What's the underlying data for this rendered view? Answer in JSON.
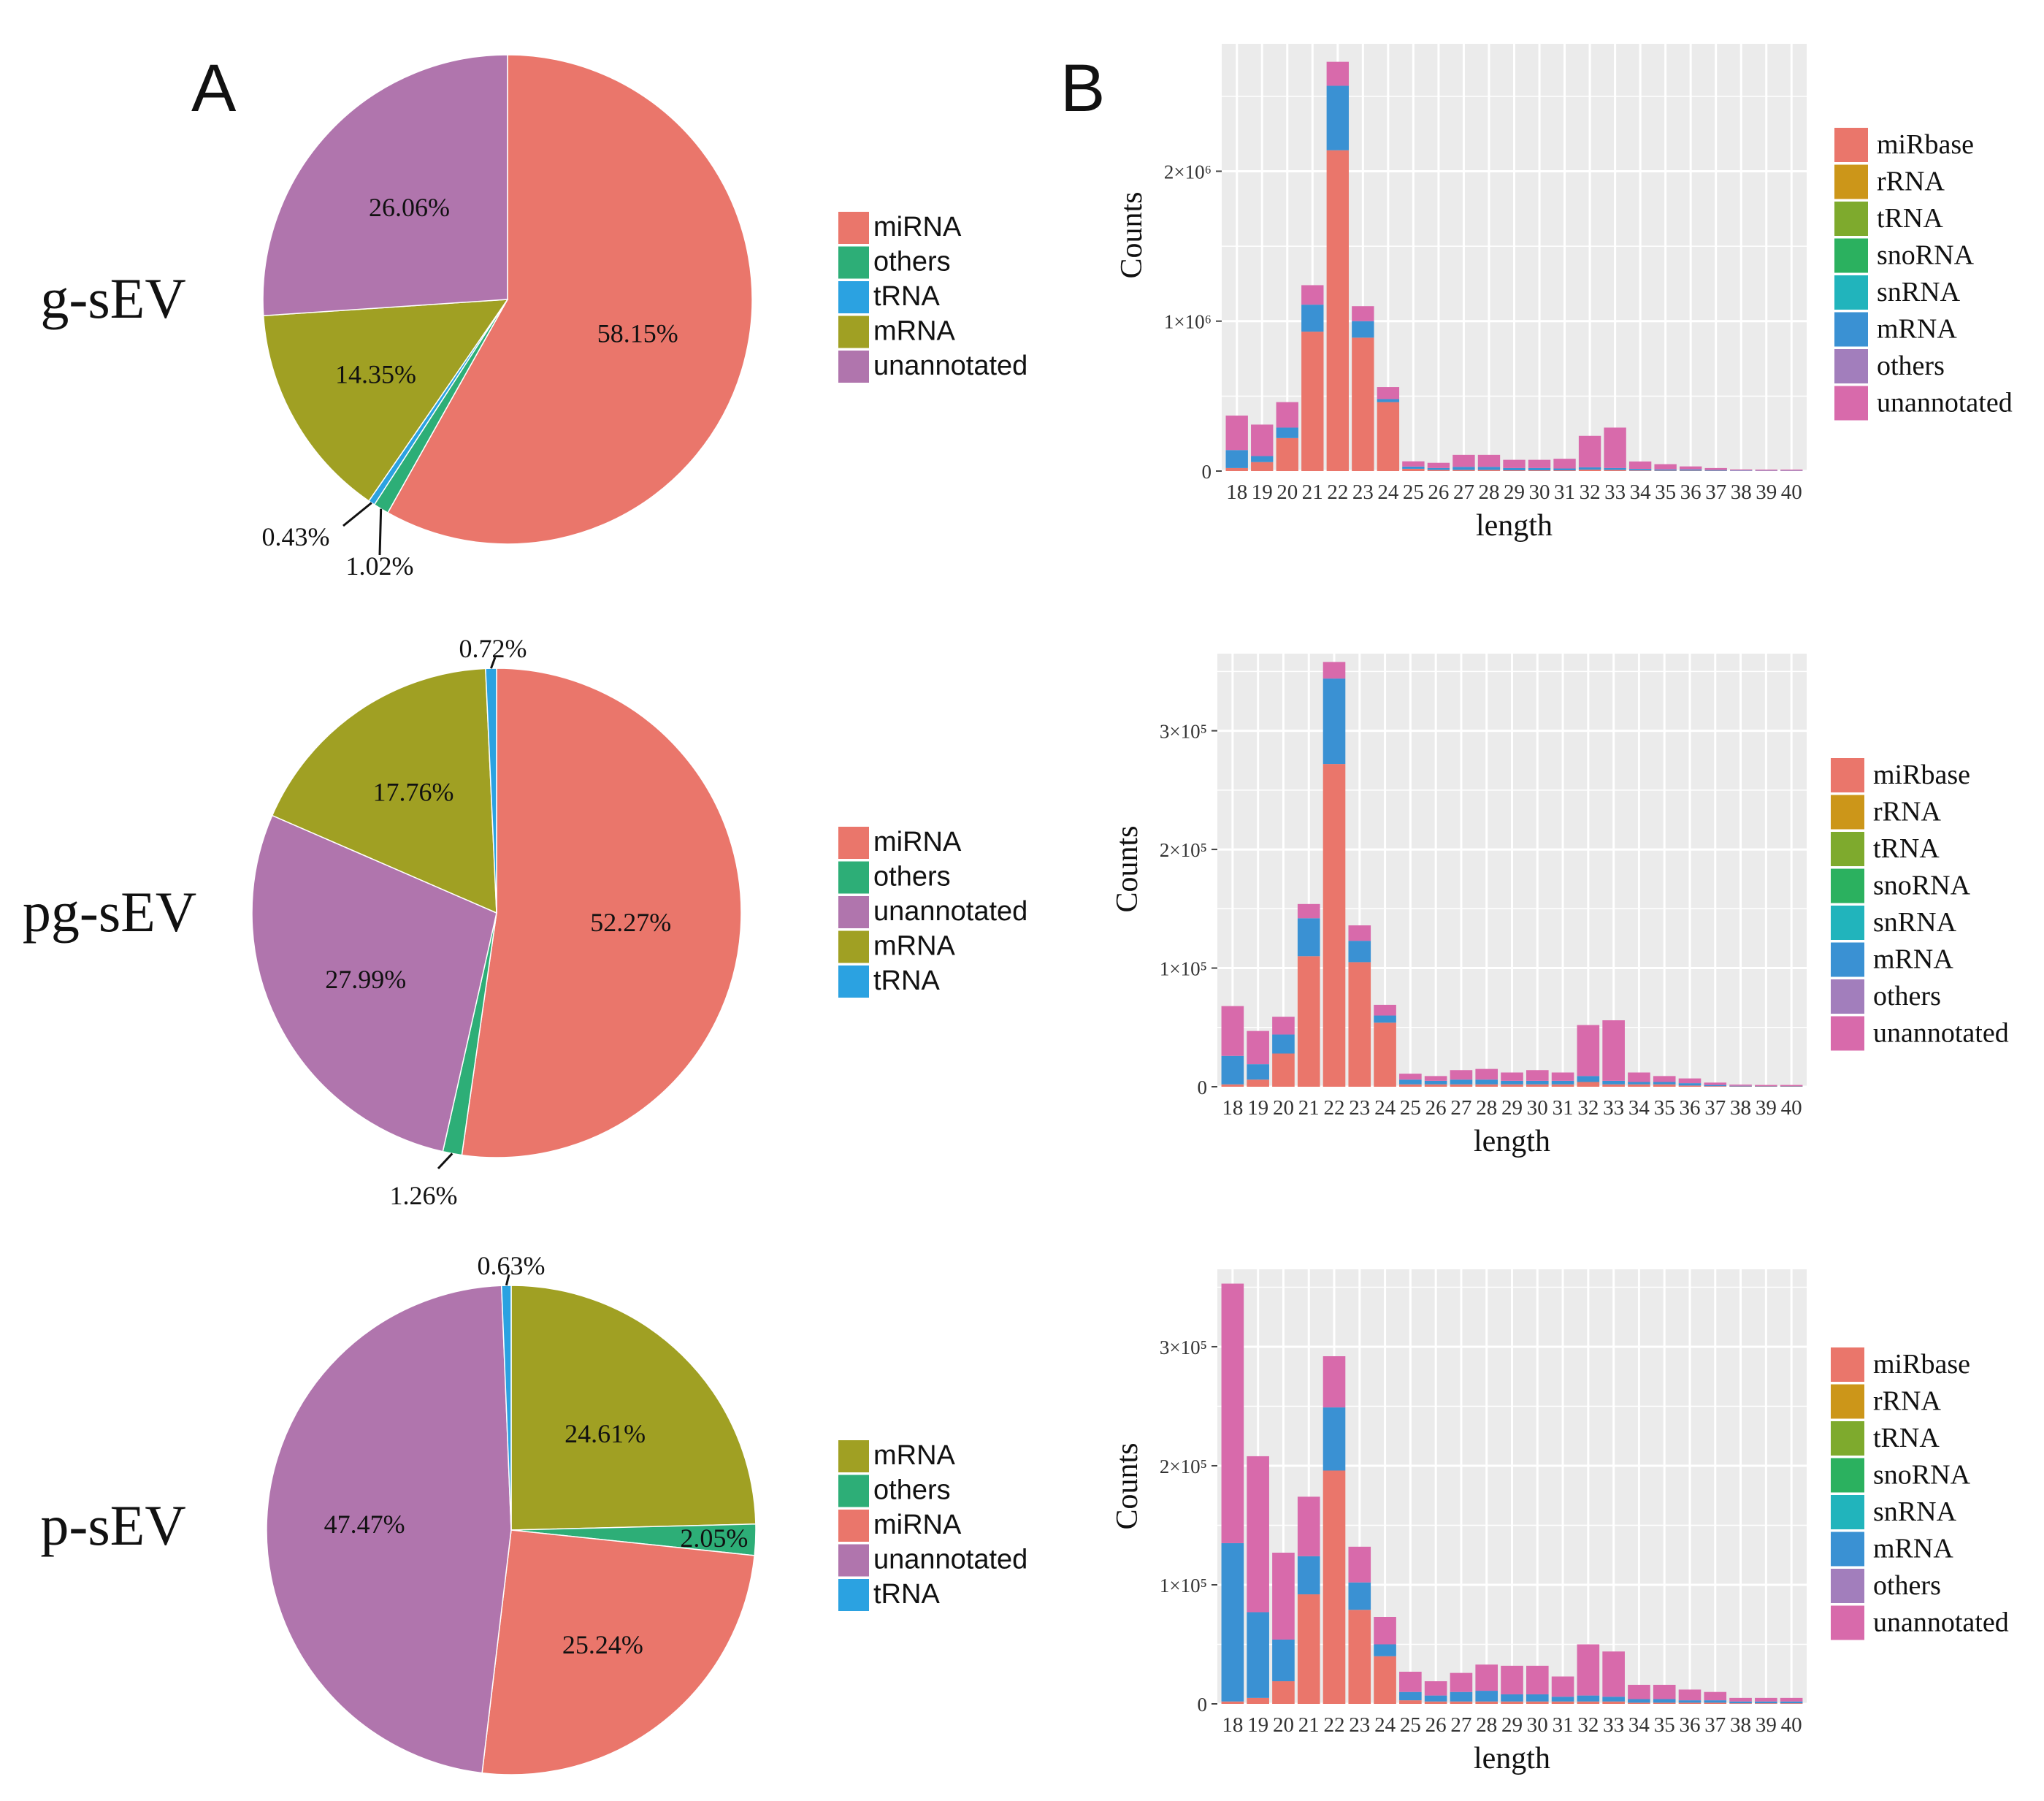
{
  "panel_letters": {
    "a": "A",
    "b": "B"
  },
  "colors": {
    "miRNA": "#EA766B",
    "others_pie": "#2DAE77",
    "tRNA_pie": "#2BA2E1",
    "mRNA_pie": "#A0A023",
    "unannotated_pie": "#B075AD",
    "miRbase": "#EA766B",
    "rRNA": "#CC9619",
    "tRNA_bar": "#7EAA2D",
    "snoRNA": "#2BB15F",
    "snRNA": "#21B4BC",
    "mRNA_bar": "#3A91D3",
    "others_bar": "#A27EBC",
    "unannotated_bar": "#D86AAB",
    "panel_bg": "#EBEBEB"
  },
  "chart_data": [
    {
      "type": "pie",
      "title": "g-sEV",
      "slices": [
        {
          "label": "miRNA",
          "value": 58.15,
          "text": "58.15%"
        },
        {
          "label": "others",
          "value": 1.02,
          "text": "1.02%"
        },
        {
          "label": "tRNA",
          "value": 0.43,
          "text": "0.43%"
        },
        {
          "label": "mRNA",
          "value": 14.35,
          "text": "14.35%"
        },
        {
          "label": "unannotated",
          "value": 26.06,
          "text": "26.06%"
        }
      ],
      "legend": [
        "miRNA",
        "others",
        "tRNA",
        "mRNA",
        "unannotated"
      ]
    },
    {
      "type": "pie",
      "title": "pg-sEV",
      "slices": [
        {
          "label": "miRNA",
          "value": 52.27,
          "text": "52.27%"
        },
        {
          "label": "others",
          "value": 1.26,
          "text": "1.26%"
        },
        {
          "label": "unannotated",
          "value": 27.99,
          "text": "27.99%"
        },
        {
          "label": "mRNA",
          "value": 17.76,
          "text": "17.76%"
        },
        {
          "label": "tRNA",
          "value": 0.72,
          "text": "0.72%"
        }
      ],
      "legend": [
        "miRNA",
        "others",
        "unannotated",
        "mRNA",
        "tRNA"
      ]
    },
    {
      "type": "pie",
      "title": "p-sEV",
      "slices": [
        {
          "label": "mRNA",
          "value": 24.61,
          "text": "24.61%"
        },
        {
          "label": "others",
          "value": 2.05,
          "text": "2.05%"
        },
        {
          "label": "miRNA",
          "value": 25.24,
          "text": "25.24%"
        },
        {
          "label": "unannotated",
          "value": 47.47,
          "text": "47.47%"
        },
        {
          "label": "tRNA",
          "value": 0.63,
          "text": "0.63%"
        }
      ],
      "legend": [
        "mRNA",
        "others",
        "miRNA",
        "unannotated",
        "tRNA"
      ]
    },
    {
      "type": "bar",
      "stacked": true,
      "xlabel": "length",
      "ylabel": "Counts",
      "ylim": [
        0,
        2850000
      ],
      "yticks": [
        0,
        1000000,
        2000000
      ],
      "ytick_labels": [
        "0",
        "1×10⁶",
        "2×10⁶"
      ],
      "categories": [
        "18",
        "19",
        "20",
        "21",
        "22",
        "23",
        "24",
        "25",
        "26",
        "27",
        "28",
        "29",
        "30",
        "31",
        "32",
        "33",
        "34",
        "35",
        "36",
        "37",
        "38",
        "39",
        "40"
      ],
      "series": [
        {
          "name": "miRbase",
          "values": [
            20000,
            60000,
            220000,
            930000,
            2140000,
            890000,
            460000,
            15000,
            8000,
            8000,
            8000,
            5000,
            5000,
            5000,
            10000,
            8000,
            4000,
            3000,
            3000,
            2000,
            1000,
            1000,
            1000
          ]
        },
        {
          "name": "mRNA",
          "values": [
            120000,
            40000,
            70000,
            180000,
            430000,
            110000,
            20000,
            15000,
            12000,
            20000,
            20000,
            15000,
            15000,
            12000,
            15000,
            12000,
            10000,
            8000,
            8000,
            5000,
            3000,
            2000,
            2000
          ]
        },
        {
          "name": "unannotated",
          "values": [
            230000,
            210000,
            170000,
            130000,
            160000,
            100000,
            80000,
            35000,
            35000,
            80000,
            80000,
            55000,
            55000,
            65000,
            210000,
            270000,
            50000,
            35000,
            20000,
            13000,
            7000,
            7000,
            7000
          ]
        }
      ],
      "legend": [
        "miRbase",
        "rRNA",
        "tRNA",
        "snoRNA",
        "snRNA",
        "mRNA",
        "others",
        "unannotated"
      ]
    },
    {
      "type": "bar",
      "stacked": true,
      "xlabel": "length",
      "ylabel": "Counts",
      "ylim": [
        0,
        365000
      ],
      "yticks": [
        0,
        100000,
        200000,
        300000
      ],
      "ytick_labels": [
        "0",
        "1×10⁵",
        "2×10⁵",
        "3×10⁵"
      ],
      "categories": [
        "18",
        "19",
        "20",
        "21",
        "22",
        "23",
        "24",
        "25",
        "26",
        "27",
        "28",
        "29",
        "30",
        "31",
        "32",
        "33",
        "34",
        "35",
        "36",
        "37",
        "38",
        "39",
        "40"
      ],
      "series": [
        {
          "name": "miRbase",
          "values": [
            2000,
            6000,
            28000,
            110000,
            272000,
            105000,
            54000,
            2000,
            2000,
            2000,
            2000,
            2000,
            2000,
            2000,
            4000,
            2000,
            2000,
            2000,
            1000,
            500,
            300,
            300,
            300
          ]
        },
        {
          "name": "mRNA",
          "values": [
            24000,
            13000,
            16000,
            32000,
            72000,
            18000,
            6000,
            4000,
            3000,
            4000,
            4000,
            3000,
            3000,
            3000,
            5000,
            3000,
            2000,
            2000,
            2000,
            1000,
            500,
            300,
            300
          ]
        },
        {
          "name": "unannotated",
          "values": [
            42000,
            28000,
            15000,
            12000,
            14000,
            13000,
            9000,
            5000,
            4000,
            8000,
            9000,
            7000,
            9000,
            7000,
            43000,
            51000,
            8000,
            5000,
            4000,
            2000,
            1000,
            900,
            900
          ]
        }
      ],
      "legend": [
        "miRbase",
        "rRNA",
        "tRNA",
        "snoRNA",
        "snRNA",
        "mRNA",
        "others",
        "unannotated"
      ]
    },
    {
      "type": "bar",
      "stacked": true,
      "xlabel": "length",
      "ylabel": "Counts",
      "ylim": [
        0,
        365000
      ],
      "yticks": [
        0,
        100000,
        200000,
        300000
      ],
      "ytick_labels": [
        "0",
        "1×10⁵",
        "2×10⁵",
        "3×10⁵"
      ],
      "categories": [
        "18",
        "19",
        "20",
        "21",
        "22",
        "23",
        "24",
        "25",
        "26",
        "27",
        "28",
        "29",
        "30",
        "31",
        "32",
        "33",
        "34",
        "35",
        "36",
        "37",
        "38",
        "39",
        "40"
      ],
      "series": [
        {
          "name": "miRbase",
          "values": [
            2000,
            5000,
            19000,
            92000,
            196000,
            79000,
            40000,
            3000,
            2000,
            2000,
            2000,
            2000,
            2000,
            2000,
            2000,
            2000,
            1000,
            1000,
            1000,
            1000,
            500,
            500,
            500
          ]
        },
        {
          "name": "mRNA",
          "values": [
            133000,
            72000,
            35000,
            32000,
            53000,
            23000,
            10000,
            7000,
            5000,
            8000,
            9000,
            6000,
            6000,
            4000,
            5000,
            4000,
            3000,
            3000,
            2000,
            2000,
            1500,
            1500,
            1500
          ]
        },
        {
          "name": "unannotated",
          "values": [
            218000,
            131000,
            73000,
            50000,
            43000,
            30000,
            23000,
            17000,
            12000,
            16000,
            22000,
            24000,
            24000,
            17000,
            43000,
            38000,
            12000,
            12000,
            9000,
            7000,
            3000,
            3000,
            3000
          ]
        }
      ],
      "legend": [
        "miRbase",
        "rRNA",
        "tRNA",
        "snoRNA",
        "snRNA",
        "mRNA",
        "others",
        "unannotated"
      ]
    }
  ]
}
